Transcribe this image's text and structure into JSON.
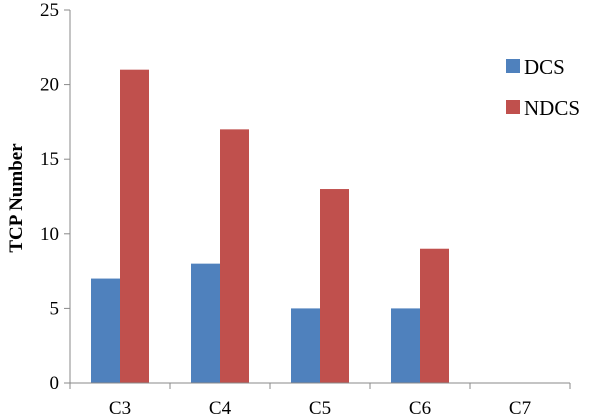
{
  "chart_data": {
    "type": "bar",
    "title": "",
    "xlabel": "",
    "ylabel": "TCP Number",
    "categories": [
      "C3",
      "C4",
      "C5",
      "C6",
      "C7"
    ],
    "series": [
      {
        "name": "DCS",
        "values": [
          7,
          8,
          5,
          5,
          0
        ],
        "color": "#4f81bd"
      },
      {
        "name": "NDCS",
        "values": [
          21,
          17,
          13,
          9,
          0
        ],
        "color": "#c0504d"
      }
    ],
    "ylim": [
      0,
      25
    ],
    "yticks": [
      "0",
      "5",
      "10",
      "15",
      "20",
      "25"
    ],
    "grid": false,
    "legend_position": "right"
  }
}
